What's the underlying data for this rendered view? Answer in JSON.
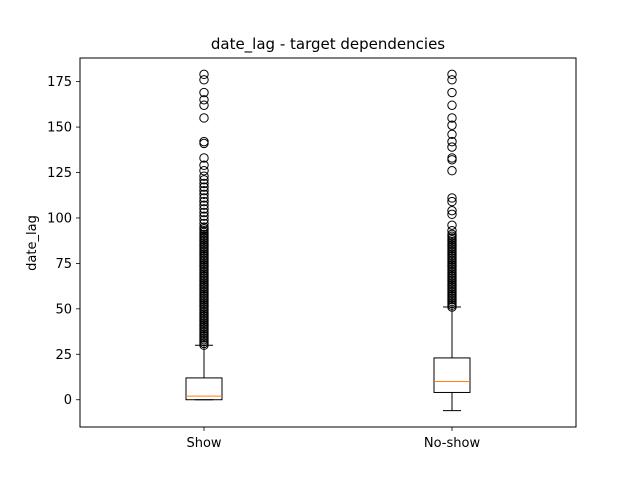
{
  "chart_data": {
    "type": "boxplot",
    "title": "date_lag - target dependencies",
    "xlabel": "",
    "ylabel": "date_lag",
    "categories": [
      "Show",
      "No-show"
    ],
    "ylim": [
      -15,
      188
    ],
    "yticks": [
      0,
      25,
      50,
      75,
      100,
      125,
      150,
      175
    ],
    "grid": false,
    "boxes": [
      {
        "name": "Show",
        "whisker_low": 0,
        "q1": 0,
        "median": 2,
        "q3": 12,
        "whisker_high": 30,
        "outlier_dense_range": [
          30,
          95
        ],
        "outliers": [
          97,
          99,
          101,
          103,
          105,
          107,
          109,
          111,
          113,
          115,
          117,
          119,
          121,
          123,
          126,
          129,
          133,
          141,
          142,
          155,
          162,
          165,
          169,
          176,
          179
        ]
      },
      {
        "name": "No-show",
        "whisker_low": -6,
        "q1": 4,
        "median": 10,
        "q3": 23,
        "whisker_high": 51,
        "outlier_dense_range": [
          51,
          90
        ],
        "outliers": [
          91,
          93,
          96,
          102,
          104,
          109,
          111,
          126,
          132,
          133,
          139,
          142,
          146,
          151,
          155,
          162,
          169,
          176,
          179
        ]
      }
    ],
    "colors": {
      "box": "#000000",
      "median": "#ff7f0e",
      "outlier": "#000000"
    }
  }
}
